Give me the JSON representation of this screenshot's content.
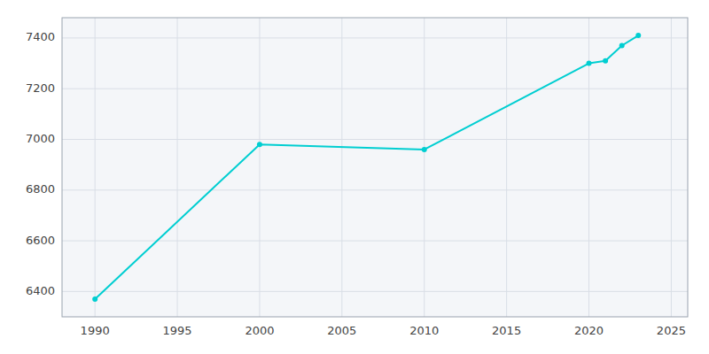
{
  "chart_data": {
    "type": "line",
    "x": [
      1990,
      2000,
      2010,
      2020,
      2021,
      2022,
      2023
    ],
    "values": [
      6370,
      6980,
      6960,
      7300,
      7310,
      7370,
      7410
    ],
    "color": "#00CED1",
    "marker": "circle",
    "xlim": [
      1988,
      2026
    ],
    "ylim": [
      6300,
      7480
    ],
    "xticks": [
      1990,
      1995,
      2000,
      2005,
      2010,
      2015,
      2020,
      2025
    ],
    "yticks": [
      6400,
      6600,
      6800,
      7000,
      7200,
      7400
    ],
    "grid": true
  }
}
